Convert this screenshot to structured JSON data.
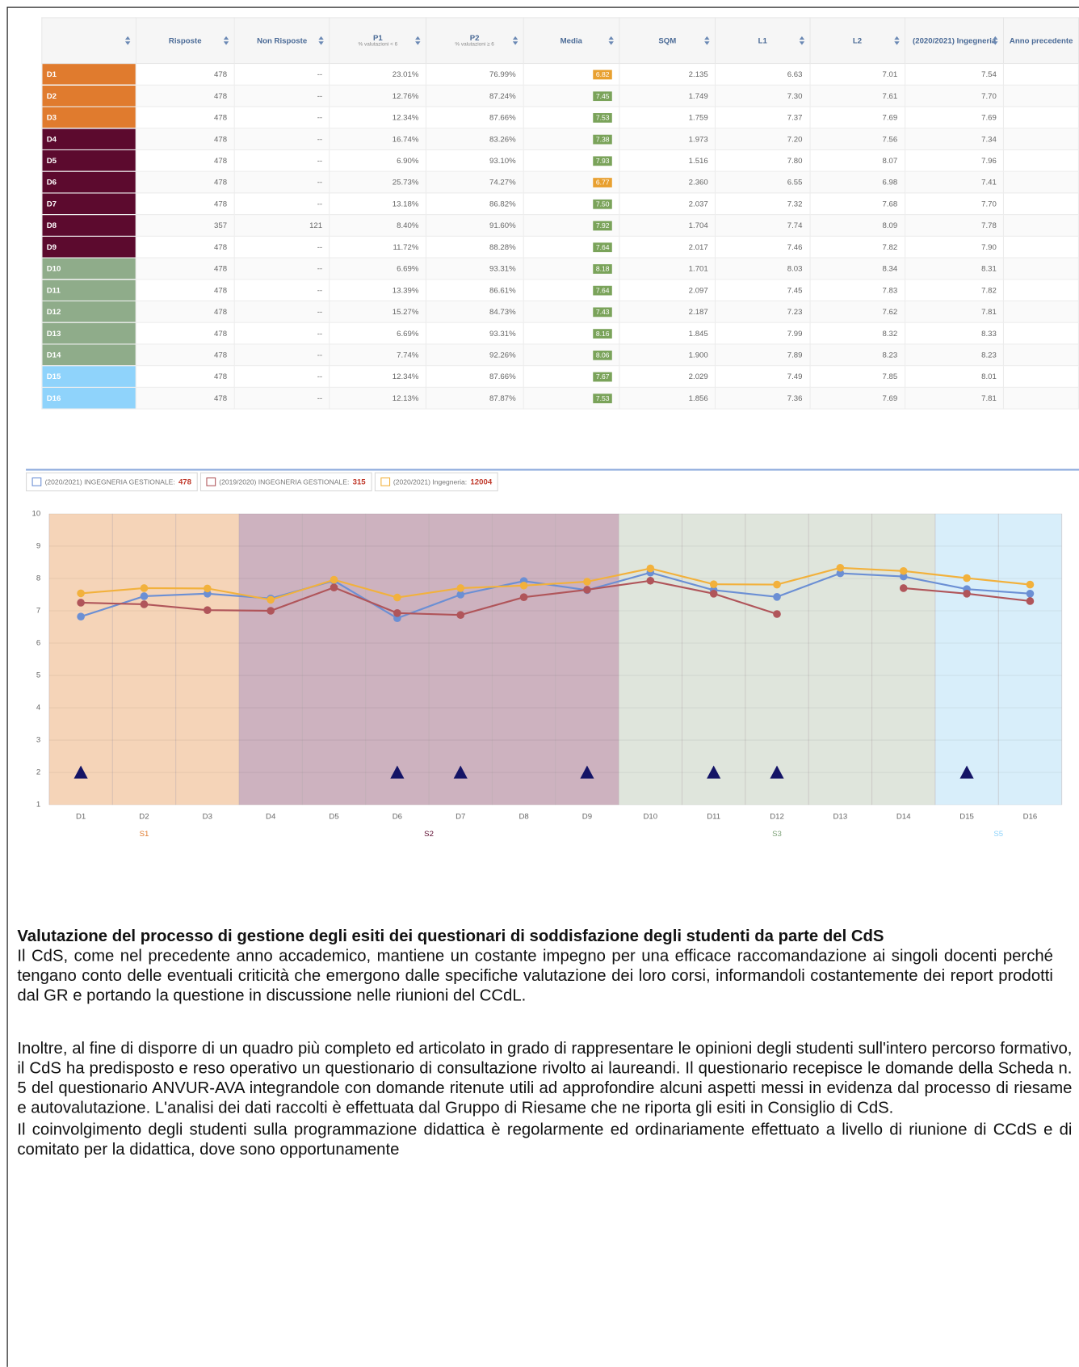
{
  "table": {
    "columns": [
      {
        "label": "Risposte"
      },
      {
        "label": "Non Risposte"
      },
      {
        "label": "P1",
        "sub": "% valutazioni < 6"
      },
      {
        "label": "P2",
        "sub": "% valutazioni ≥ 6"
      },
      {
        "label": "Media"
      },
      {
        "label": "SQM"
      },
      {
        "label": "L1"
      },
      {
        "label": "L2"
      },
      {
        "label": "(2020/2021) Ingegneria"
      },
      {
        "label": "Anno precedente"
      }
    ],
    "rows": [
      {
        "label": "D1",
        "color": "#e07b2e",
        "badge": "#e8a030",
        "cells": [
          "478",
          "--",
          "23.01%",
          "76.99%",
          "6.82",
          "2.135",
          "6.63",
          "7.01",
          "7.54"
        ]
      },
      {
        "label": "D2",
        "color": "#e07b2e",
        "badge": "#7aa35a",
        "cells": [
          "478",
          "--",
          "12.76%",
          "87.24%",
          "7.45",
          "1.749",
          "7.30",
          "7.61",
          "7.70"
        ]
      },
      {
        "label": "D3",
        "color": "#e07b2e",
        "badge": "#7aa35a",
        "cells": [
          "478",
          "--",
          "12.34%",
          "87.66%",
          "7.53",
          "1.759",
          "7.37",
          "7.69",
          "7.69"
        ]
      },
      {
        "label": "D4",
        "color": "#5c0a2e",
        "badge": "#7aa35a",
        "cells": [
          "478",
          "--",
          "16.74%",
          "83.26%",
          "7.38",
          "1.973",
          "7.20",
          "7.56",
          "7.34"
        ]
      },
      {
        "label": "D5",
        "color": "#5c0a2e",
        "badge": "#7aa35a",
        "cells": [
          "478",
          "--",
          "6.90%",
          "93.10%",
          "7.93",
          "1.516",
          "7.80",
          "8.07",
          "7.96"
        ]
      },
      {
        "label": "D6",
        "color": "#5c0a2e",
        "badge": "#e8a030",
        "cells": [
          "478",
          "--",
          "25.73%",
          "74.27%",
          "6.77",
          "2.360",
          "6.55",
          "6.98",
          "7.41"
        ]
      },
      {
        "label": "D7",
        "color": "#5c0a2e",
        "badge": "#7aa35a",
        "cells": [
          "478",
          "--",
          "13.18%",
          "86.82%",
          "7.50",
          "2.037",
          "7.32",
          "7.68",
          "7.70"
        ]
      },
      {
        "label": "D8",
        "color": "#5c0a2e",
        "badge": "#7aa35a",
        "cells": [
          "357",
          "121",
          "8.40%",
          "91.60%",
          "7.92",
          "1.704",
          "7.74",
          "8.09",
          "7.78"
        ]
      },
      {
        "label": "D9",
        "color": "#5c0a2e",
        "badge": "#7aa35a",
        "cells": [
          "478",
          "--",
          "11.72%",
          "88.28%",
          "7.64",
          "2.017",
          "7.46",
          "7.82",
          "7.90"
        ]
      },
      {
        "label": "D10",
        "color": "#8fac8a",
        "badge": "#7aa35a",
        "cells": [
          "478",
          "--",
          "6.69%",
          "93.31%",
          "8.18",
          "1.701",
          "8.03",
          "8.34",
          "8.31"
        ]
      },
      {
        "label": "D11",
        "color": "#8fac8a",
        "badge": "#7aa35a",
        "cells": [
          "478",
          "--",
          "13.39%",
          "86.61%",
          "7.64",
          "2.097",
          "7.45",
          "7.83",
          "7.82"
        ]
      },
      {
        "label": "D12",
        "color": "#8fac8a",
        "badge": "#7aa35a",
        "cells": [
          "478",
          "--",
          "15.27%",
          "84.73%",
          "7.43",
          "2.187",
          "7.23",
          "7.62",
          "7.81"
        ]
      },
      {
        "label": "D13",
        "color": "#8fac8a",
        "badge": "#7aa35a",
        "cells": [
          "478",
          "--",
          "6.69%",
          "93.31%",
          "8.16",
          "1.845",
          "7.99",
          "8.32",
          "8.33"
        ]
      },
      {
        "label": "D14",
        "color": "#8fac8a",
        "badge": "#7aa35a",
        "cells": [
          "478",
          "--",
          "7.74%",
          "92.26%",
          "8.06",
          "1.900",
          "7.89",
          "8.23",
          "8.23"
        ]
      },
      {
        "label": "D15",
        "color": "#8fd3fb",
        "badge": "#7aa35a",
        "cells": [
          "478",
          "--",
          "12.34%",
          "87.66%",
          "7.67",
          "2.029",
          "7.49",
          "7.85",
          "8.01"
        ]
      },
      {
        "label": "D16",
        "color": "#8fd3fb",
        "badge": "#7aa35a",
        "cells": [
          "478",
          "--",
          "12.13%",
          "87.87%",
          "7.53",
          "1.856",
          "7.36",
          "7.69",
          "7.81"
        ]
      }
    ]
  },
  "chart_data": {
    "type": "line",
    "categories": [
      "D1",
      "D2",
      "D3",
      "D4",
      "D5",
      "D6",
      "D7",
      "D8",
      "D9",
      "D10",
      "D11",
      "D12",
      "D13",
      "D14",
      "D15",
      "D16"
    ],
    "ylim": [
      1,
      10
    ],
    "yticks": [
      1,
      2,
      3,
      4,
      5,
      6,
      7,
      8,
      9,
      10
    ],
    "grid": true,
    "series": [
      {
        "name": "(2020/2021) INGEGNERIA GESTIONALE:",
        "count": 478,
        "color": "#6b8fd4",
        "values": [
          6.82,
          7.45,
          7.53,
          7.38,
          7.93,
          6.77,
          7.5,
          7.92,
          7.64,
          8.18,
          7.64,
          7.43,
          8.16,
          8.06,
          7.67,
          7.53
        ]
      },
      {
        "name": "(2019/2020) INGEGNERIA GESTIONALE:",
        "count": 315,
        "color": "#b0555a",
        "values": [
          7.25,
          7.2,
          7.02,
          7.0,
          7.72,
          6.93,
          6.87,
          7.42,
          7.65,
          7.93,
          7.53,
          6.9,
          null,
          7.7,
          7.53,
          7.3
        ]
      },
      {
        "name": "(2020/2021) Ingegneria:",
        "count": 12004,
        "color": "#f2b13c",
        "values": [
          7.54,
          7.7,
          7.69,
          7.34,
          7.96,
          7.41,
          7.7,
          7.78,
          7.9,
          8.31,
          7.82,
          7.81,
          8.33,
          8.23,
          8.01,
          7.81
        ]
      },
      {
        "color": "#141466",
        "marker": "triangle",
        "values": [
          2,
          null,
          null,
          null,
          null,
          2,
          2,
          null,
          2,
          null,
          2,
          2,
          null,
          null,
          2,
          null
        ]
      }
    ],
    "bands": [
      {
        "label": "S1",
        "start": 0,
        "end": 2,
        "color": "#f5d4b8",
        "label_color": "#e07b2e"
      },
      {
        "label": "S2",
        "start": 3,
        "end": 8,
        "color": "#cdb2bf",
        "label_color": "#5c0a2e"
      },
      {
        "label": "S3",
        "start": 9,
        "end": 13,
        "color": "#dfe5dc",
        "label_color": "#7fa37a"
      },
      {
        "label": "S5",
        "start": 14,
        "end": 15,
        "color": "#d8eefa",
        "label_color": "#8fd3fb"
      }
    ]
  },
  "section": {
    "heading": "Valutazione del processo di gestione degli esiti dei questionari di soddisfazione degli studenti da parte  del CdS",
    "paragraphs": [
      "Il CdS, come nel precedente anno accademico, mantiene un costante impegno per una efficace raccomandazione ai singoli docenti perché tengano conto delle eventuali criticità che emergono dalle specifiche valutazione dei loro corsi, informandoli costantemente dei report prodotti dal GR e portando la questione in discussione nelle riunioni del CCdL.",
      "Inoltre, al fine di disporre di un quadro più completo ed articolato in grado di rappresentare le opinioni degli studenti sull'intero percorso formativo, il CdS ha predisposto e reso operativo un questionario di consultazione rivolto ai laureandi. Il questionario recepisce le domande della Scheda n. 5 del questionario ANVUR-AVA integrandole con domande ritenute utili ad approfondire alcuni aspetti messi in evidenza dal processo di riesame e autovalutazione. L'analisi dei dati raccolti è effettuata dal Gruppo di Riesame che ne riporta gli esiti in Consiglio di CdS.",
      "Il coinvolgimento degli studenti sulla programmazione didattica è regolarmente ed ordinariamente effettuato a livello di riunione di CCdS e di comitato per la didattica, dove sono opportunamente"
    ]
  }
}
